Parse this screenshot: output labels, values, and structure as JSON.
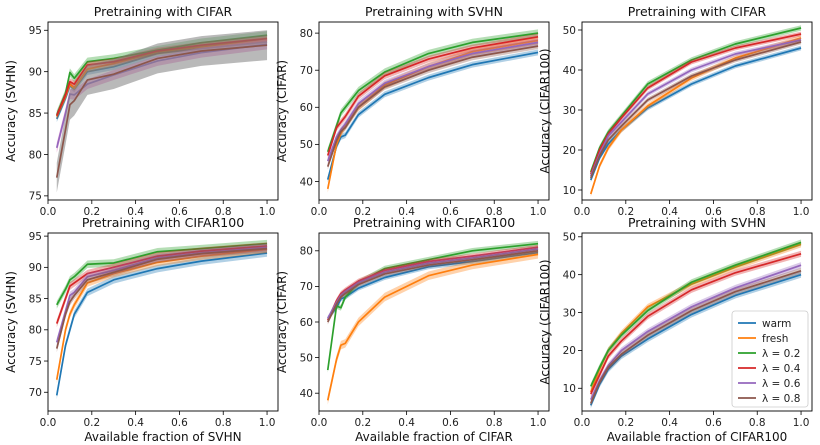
{
  "chart_data": [
    {
      "type": "line",
      "title": "Pretraining with CIFAR",
      "xlabel": "",
      "ylabel": "Accuracy (SVHN)",
      "xlim": [
        0,
        1.05
      ],
      "ylim": [
        74.5,
        96
      ],
      "xticks": [
        "0.0",
        "0.2",
        "0.4",
        "0.6",
        "0.8",
        "1.0"
      ],
      "yticks": [
        75,
        80,
        85,
        90,
        95
      ],
      "x": [
        0.04,
        0.08,
        0.1,
        0.12,
        0.18,
        0.3,
        0.5,
        0.7,
        1.0
      ],
      "series": [
        {
          "name": "warm",
          "values": [
            84.3,
            86.8,
            88.3,
            87.9,
            90.0,
            90.6,
            92.2,
            92.8,
            93.6
          ],
          "band": 0.4
        },
        {
          "name": "fresh",
          "values": [
            84.6,
            87.0,
            88.5,
            88.0,
            90.3,
            91.0,
            92.4,
            93.0,
            93.8
          ],
          "band": 0.4
        },
        {
          "name": "λ = 0.2",
          "values": [
            84.8,
            87.4,
            89.9,
            89.2,
            91.2,
            91.6,
            92.6,
            93.5,
            94.4
          ],
          "band": 0.5
        },
        {
          "name": "λ = 0.4",
          "values": [
            84.7,
            87.2,
            88.8,
            88.5,
            90.8,
            91.2,
            92.5,
            93.2,
            94.0
          ],
          "band": 0.4
        },
        {
          "name": "λ = 0.6",
          "values": [
            80.8,
            85.0,
            87.3,
            87.2,
            88.5,
            89.6,
            91.3,
            92.3,
            93.3
          ],
          "band": 0.6
        },
        {
          "name": "λ = 0.8",
          "values": [
            77.2,
            83.0,
            86.0,
            86.5,
            89.0,
            89.7,
            91.6,
            92.5,
            93.2
          ],
          "band": 1.8
        }
      ]
    },
    {
      "type": "line",
      "title": "Pretraining with SVHN",
      "xlabel": "",
      "ylabel": "Accuracy (CIFAR)",
      "xlim": [
        0,
        1.05
      ],
      "ylim": [
        35,
        83
      ],
      "xticks": [
        "0.0",
        "0.2",
        "0.4",
        "0.6",
        "0.8",
        "1.0"
      ],
      "yticks": [
        40,
        50,
        60,
        70,
        80
      ],
      "x": [
        0.04,
        0.08,
        0.1,
        0.12,
        0.18,
        0.3,
        0.5,
        0.7,
        1.0
      ],
      "series": [
        {
          "name": "warm",
          "values": [
            40.5,
            49.5,
            52.0,
            52.5,
            58.0,
            63.5,
            68.0,
            71.5,
            74.8
          ],
          "band": 0.8
        },
        {
          "name": "fresh",
          "values": [
            38.0,
            50.0,
            53.0,
            55.0,
            60.0,
            66.0,
            71.0,
            75.0,
            78.0
          ],
          "band": 1.0
        },
        {
          "name": "λ = 0.2",
          "values": [
            48.0,
            55.0,
            58.5,
            60.0,
            64.5,
            69.5,
            74.5,
            77.5,
            80.0
          ],
          "band": 1.0
        },
        {
          "name": "λ = 0.4",
          "values": [
            47.0,
            54.5,
            56.0,
            57.5,
            63.0,
            68.5,
            73.0,
            76.0,
            79.0
          ],
          "band": 0.9
        },
        {
          "name": "λ = 0.6",
          "values": [
            45.5,
            52.0,
            54.0,
            55.5,
            61.0,
            66.5,
            71.0,
            74.5,
            77.5
          ],
          "band": 0.9
        },
        {
          "name": "λ = 0.8",
          "values": [
            44.0,
            51.0,
            53.5,
            54.5,
            60.0,
            65.5,
            70.0,
            73.5,
            76.5
          ],
          "band": 0.8
        }
      ]
    },
    {
      "type": "line",
      "title": "Pretraining with CIFAR",
      "xlabel": "",
      "ylabel": "Accuracy (CIFAR100)",
      "xlim": [
        0,
        1.05
      ],
      "ylim": [
        7.5,
        52
      ],
      "xticks": [
        "0.0",
        "0.2",
        "0.4",
        "0.6",
        "0.8",
        "1.0"
      ],
      "yticks": [
        10,
        20,
        30,
        40,
        50
      ],
      "x": [
        0.04,
        0.08,
        0.12,
        0.18,
        0.3,
        0.5,
        0.7,
        1.0
      ],
      "series": [
        {
          "name": "warm",
          "values": [
            12.5,
            18.0,
            21.5,
            25.0,
            30.5,
            36.5,
            41.0,
            45.5
          ],
          "band": 0.6
        },
        {
          "name": "fresh",
          "values": [
            9.0,
            16.0,
            20.5,
            25.0,
            31.0,
            38.0,
            43.0,
            48.0
          ],
          "band": 0.7
        },
        {
          "name": "λ = 0.2",
          "values": [
            14.5,
            20.5,
            24.5,
            28.5,
            36.5,
            42.5,
            46.5,
            50.5
          ],
          "band": 0.7
        },
        {
          "name": "λ = 0.4",
          "values": [
            14.0,
            20.0,
            24.0,
            28.0,
            35.5,
            42.0,
            45.5,
            49.0
          ],
          "band": 0.6
        },
        {
          "name": "λ = 0.6",
          "values": [
            13.5,
            19.0,
            23.5,
            27.0,
            34.0,
            40.0,
            44.0,
            47.5
          ],
          "band": 0.6
        },
        {
          "name": "λ = 0.8",
          "values": [
            13.0,
            18.5,
            22.5,
            26.0,
            32.5,
            38.5,
            42.5,
            47.0
          ],
          "band": 0.6
        }
      ]
    },
    {
      "type": "line",
      "title": "Pretraining with CIFAR100",
      "xlabel": "Available fraction of SVHN",
      "ylabel": "Accuracy (SVHN)",
      "xlim": [
        0,
        1.05
      ],
      "ylim": [
        67,
        95.5
      ],
      "xticks": [
        "0.0",
        "0.2",
        "0.4",
        "0.6",
        "0.8",
        "1.0"
      ],
      "yticks": [
        70,
        75,
        80,
        85,
        90,
        95
      ],
      "x": [
        0.04,
        0.08,
        0.1,
        0.12,
        0.18,
        0.3,
        0.5,
        0.7,
        1.0
      ],
      "series": [
        {
          "name": "warm",
          "values": [
            69.5,
            77.5,
            80.0,
            82.5,
            86.0,
            88.0,
            89.8,
            91.0,
            92.3
          ],
          "band": 0.6
        },
        {
          "name": "fresh",
          "values": [
            72.0,
            80.0,
            82.5,
            84.0,
            87.5,
            89.0,
            90.8,
            91.8,
            92.9
          ],
          "band": 0.6
        },
        {
          "name": "λ = 0.2",
          "values": [
            84.0,
            86.5,
            88.0,
            88.5,
            90.5,
            90.7,
            92.5,
            93.0,
            93.8
          ],
          "band": 0.6
        },
        {
          "name": "λ = 0.4",
          "values": [
            81.0,
            85.0,
            87.0,
            87.5,
            89.0,
            90.0,
            91.8,
            92.6,
            93.4
          ],
          "band": 0.6
        },
        {
          "name": "λ = 0.6",
          "values": [
            78.0,
            83.0,
            85.5,
            86.0,
            88.5,
            89.5,
            91.5,
            92.3,
            93.2
          ],
          "band": 0.6
        },
        {
          "name": "λ = 0.8",
          "values": [
            77.0,
            82.5,
            84.5,
            85.5,
            88.0,
            89.2,
            91.3,
            92.2,
            93.0
          ],
          "band": 0.6
        }
      ]
    },
    {
      "type": "line",
      "title": "Pretraining with CIFAR100",
      "xlabel": "Available fraction of CIFAR",
      "ylabel": "Accuracy (CIFAR)",
      "xlim": [
        0,
        1.05
      ],
      "ylim": [
        35,
        85
      ],
      "xticks": [
        "0.0",
        "0.2",
        "0.4",
        "0.6",
        "0.8",
        "1.0"
      ],
      "yticks": [
        40,
        50,
        60,
        70,
        80
      ],
      "x": [
        0.04,
        0.08,
        0.1,
        0.12,
        0.18,
        0.3,
        0.5,
        0.7,
        1.0
      ],
      "series": [
        {
          "name": "warm",
          "values": [
            61.0,
            64.0,
            66.5,
            67.0,
            69.5,
            72.5,
            75.5,
            77.0,
            79.5
          ],
          "band": 0.7
        },
        {
          "name": "fresh",
          "values": [
            38.0,
            49.5,
            53.5,
            54.0,
            60.0,
            67.0,
            73.0,
            76.0,
            79.0
          ],
          "band": 1.2
        },
        {
          "name": "λ = 0.2",
          "values": [
            46.5,
            64.5,
            64.0,
            67.0,
            71.0,
            75.0,
            77.5,
            80.0,
            82.0
          ],
          "band": 0.8
        },
        {
          "name": "λ = 0.4",
          "values": [
            60.5,
            66.0,
            68.0,
            69.0,
            71.5,
            74.5,
            77.0,
            78.5,
            81.0
          ],
          "band": 0.7
        },
        {
          "name": "λ = 0.6",
          "values": [
            61.0,
            65.5,
            67.5,
            68.5,
            71.0,
            74.0,
            76.5,
            78.0,
            80.5
          ],
          "band": 0.7
        },
        {
          "name": "λ = 0.8",
          "values": [
            60.0,
            65.0,
            67.0,
            68.0,
            70.5,
            73.5,
            76.0,
            77.5,
            80.0
          ],
          "band": 0.7
        }
      ]
    },
    {
      "type": "line",
      "title": "Pretraining with SVHN",
      "xlabel": "Available fraction of CIFAR100",
      "ylabel": "Accuracy (CIFAR100)",
      "xlim": [
        0,
        1.05
      ],
      "ylim": [
        4,
        51
      ],
      "xticks": [
        "0.0",
        "0.2",
        "0.4",
        "0.6",
        "0.8",
        "1.0"
      ],
      "yticks": [
        10,
        20,
        30,
        40,
        50
      ],
      "x": [
        0.04,
        0.08,
        0.12,
        0.18,
        0.3,
        0.5,
        0.7,
        1.0
      ],
      "legend_position": "lower right",
      "series": [
        {
          "name": "warm",
          "values": [
            5.5,
            11.0,
            15.0,
            18.5,
            23.0,
            29.5,
            34.5,
            40.0
          ],
          "band": 0.8
        },
        {
          "name": "fresh",
          "values": [
            9.0,
            15.0,
            20.0,
            24.5,
            31.5,
            37.5,
            42.0,
            48.0
          ],
          "band": 0.8
        },
        {
          "name": "λ = 0.2",
          "values": [
            10.5,
            15.5,
            20.0,
            24.0,
            30.5,
            38.0,
            42.5,
            48.5
          ],
          "band": 0.8
        },
        {
          "name": "λ = 0.4",
          "values": [
            8.5,
            13.5,
            18.5,
            22.5,
            29.0,
            36.0,
            40.5,
            45.5
          ],
          "band": 0.8
        },
        {
          "name": "λ = 0.6",
          "values": [
            7.0,
            12.0,
            16.0,
            20.0,
            25.0,
            31.5,
            36.5,
            42.5
          ],
          "band": 0.8
        },
        {
          "name": "λ = 0.8",
          "values": [
            6.0,
            11.5,
            15.5,
            19.0,
            24.0,
            30.5,
            35.5,
            41.0
          ],
          "band": 0.8
        }
      ]
    }
  ],
  "colors": {
    "warm": "#1f77b4",
    "fresh": "#ff7f0e",
    "λ = 0.2": "#2ca02c",
    "λ = 0.4": "#d62728",
    "λ = 0.6": "#9467bd",
    "λ = 0.8": "#8c564b"
  },
  "band_overrides": {
    "0": {
      "λ = 0.6": "#e377c2",
      "λ = 0.8": "#7f7f7f"
    }
  }
}
